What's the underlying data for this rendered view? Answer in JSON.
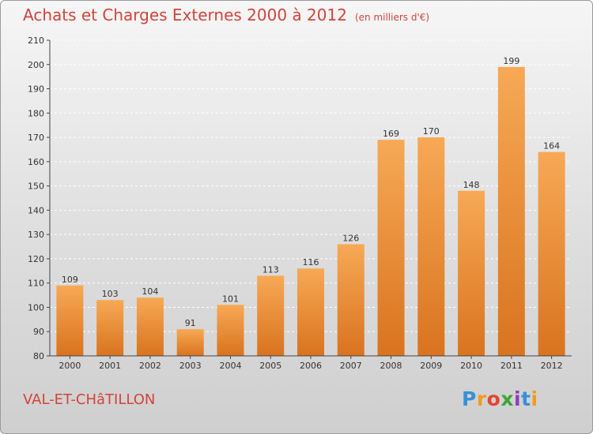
{
  "header": {
    "title": "Achats et Charges Externes 2000 à 2012",
    "unit": "(en milliers d'€)"
  },
  "footer": {
    "location": "VAL-ET-CHâTILLON",
    "brand_letters": [
      "P",
      "r",
      "o",
      "x",
      "i",
      "t",
      "i"
    ],
    "brand_colors": [
      "#3a8fd6",
      "#f39a1e",
      "#e2462f",
      "#3aa63a",
      "#8f3fb8",
      "#3a8fd6",
      "#f39a1e"
    ]
  },
  "colors": {
    "bar_top": "#f7a955",
    "bar_bottom": "#d9731f",
    "accent": "#d0453a"
  },
  "chart_data": {
    "type": "bar",
    "title": "Achats et Charges Externes 2000 à 2012",
    "categories": [
      "2000",
      "2001",
      "2002",
      "2003",
      "2004",
      "2005",
      "2006",
      "2007",
      "2008",
      "2009",
      "2010",
      "2011",
      "2012"
    ],
    "values": [
      109,
      103,
      104,
      91,
      101,
      113,
      116,
      126,
      169,
      170,
      148,
      199,
      164
    ],
    "ylim": [
      80,
      210
    ],
    "yticks": [
      80,
      90,
      100,
      110,
      120,
      130,
      140,
      150,
      160,
      170,
      180,
      190,
      200,
      210
    ],
    "grid": true
  }
}
